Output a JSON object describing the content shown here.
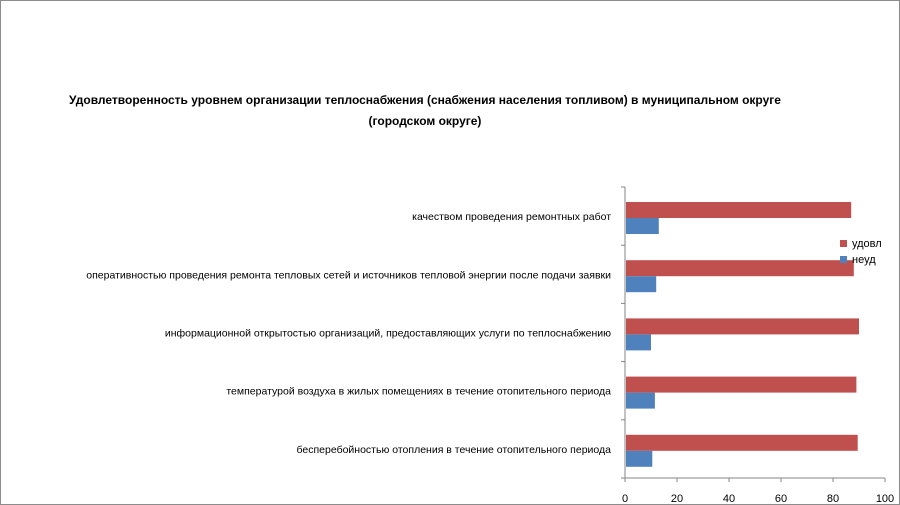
{
  "chart_data": {
    "type": "bar",
    "orientation": "horizontal",
    "title": "Удовлетворенность уровнем организации теплоснабжения (снабжения населения топливом) в муниципальном округе (городском округе)",
    "categories": [
      "качеством проведения ремонтных работ",
      "оперативностью проведения ремонта тепловых сетей и источников тепловой энергии после подачи заявки",
      "информационной открытостью организаций, предоставляющих услуги по теплоснабжению",
      "температурой воздуха в жилых помещениях в течение отопительного периода",
      "бесперебойностью отопления в течение отопительного периода"
    ],
    "series": [
      {
        "name": "удовл",
        "color": "#c0504d",
        "values": [
          87,
          88,
          90,
          89,
          89.5
        ]
      },
      {
        "name": "неуд",
        "color": "#4f81bd",
        "values": [
          13,
          12,
          10,
          11.5,
          10.5
        ]
      }
    ],
    "xlim": [
      0,
      100
    ],
    "xticks": [
      0,
      20,
      40,
      60,
      80,
      100
    ],
    "xlabel": "",
    "ylabel": "",
    "legend": "right"
  }
}
